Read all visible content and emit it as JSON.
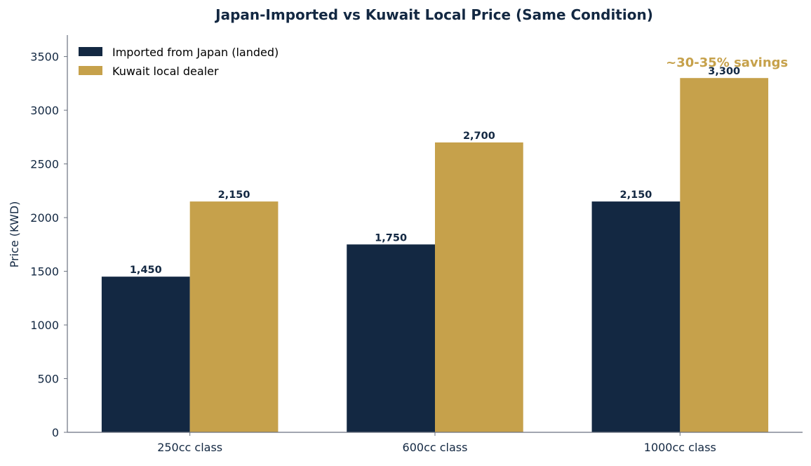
{
  "chart_data": {
    "type": "bar",
    "title": "Japan-Imported vs Kuwait Local Price (Same Condition)",
    "xlabel": "",
    "ylabel": "Price (KWD)",
    "ylim": [
      0,
      3700
    ],
    "yticks": [
      0,
      500,
      1000,
      1500,
      2000,
      2500,
      3000,
      3500
    ],
    "categories": [
      "250cc class",
      "600cc class",
      "1000cc class"
    ],
    "series": [
      {
        "name": "Imported from Japan (landed)",
        "color": "#132842",
        "values": [
          1450,
          1750,
          2150
        ],
        "labels": [
          "1,450",
          "1,750",
          "2,150"
        ]
      },
      {
        "name": "Kuwait local dealer",
        "color": "#c6a14b",
        "values": [
          2150,
          2700,
          3300
        ],
        "labels": [
          "2,150",
          "2,700",
          "3,300"
        ]
      }
    ],
    "annotation": {
      "text": "~30-35% savings",
      "color": "#c6a14b",
      "category_index": 2
    },
    "grid": false,
    "legend_position": "top-left",
    "colors": {
      "text": "#132842",
      "axis": "#6b7280"
    }
  }
}
